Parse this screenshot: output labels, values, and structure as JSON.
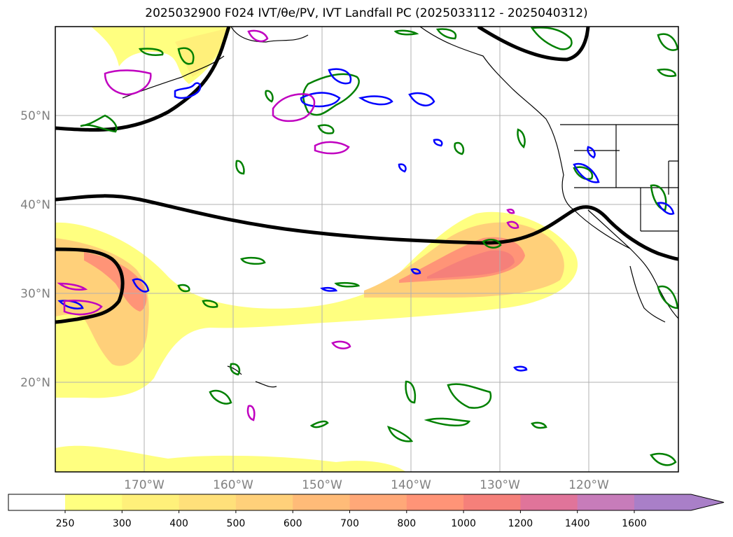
{
  "title": "2025032900 F024 IVT/θe/PV, IVT Landfall PC (2025033112 - 2025040312)",
  "lat_labels": [
    "50°N",
    "40°N",
    "30°N",
    "20°N"
  ],
  "lon_labels": [
    "170°W",
    "160°W",
    "150°W",
    "140°W",
    "130°W",
    "120°W"
  ],
  "colorbar": {
    "levels": [
      "250",
      "300",
      "400",
      "500",
      "600",
      "700",
      "800",
      "1000",
      "1200",
      "1400",
      "1600"
    ],
    "colors": [
      "#ffff80",
      "#fff07a",
      "#ffe07a",
      "#ffd07a",
      "#ffbb78",
      "#ffa878",
      "#ff9477",
      "#f5807a",
      "#e0749a",
      "#c77cba",
      "#a97fc8"
    ],
    "extend": "max"
  },
  "map": {
    "region": "North Pacific",
    "lon_range": [
      -180,
      -110
    ],
    "lat_range": [
      10,
      60
    ],
    "ivt_fill_colors": {
      "low": "#ffff80",
      "mid": "#ffd07a",
      "high": "#ff9477",
      "core": "#f5807a"
    },
    "contours": {
      "theta_e": "#000000",
      "pv_green": "#008000",
      "pv_blue": "#0000ff",
      "pv_magenta": "#c000c0"
    },
    "gridlines": true
  }
}
